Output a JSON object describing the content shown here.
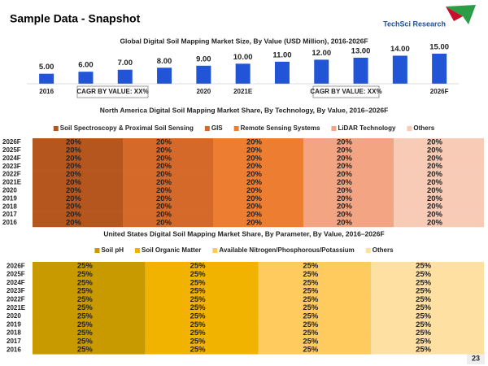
{
  "header": {
    "title": "Sample Data - Snapshot",
    "logo": "TechSci Research"
  },
  "page_number": "23",
  "chart_data": [
    {
      "type": "column",
      "title": "Global Digital Soil Mapping Market Size, By Value (USD Million), 2016-2026F",
      "categories": [
        "2016",
        null,
        null,
        null,
        "2020",
        "2021E",
        null,
        null,
        null,
        null,
        "2026F"
      ],
      "values": [
        5,
        6,
        7,
        8,
        9,
        10,
        11,
        12,
        13,
        14,
        15
      ],
      "value_labels": [
        "5.00",
        "6.00",
        "7.00",
        "8.00",
        "9.00",
        "10.00",
        "11.00",
        "12.00",
        "13.00",
        "14.00",
        "15.00"
      ],
      "color": "#2155d6",
      "annotations": [
        "CAGR BY VALUE: XX%",
        "CAGR BY VALUE: XX%"
      ]
    },
    {
      "type": "stacked-barh",
      "title": "North America Digital Soil Mapping Market Share, By Technology, By Value, 2016–2026F",
      "categories": [
        "2026F",
        "2025F",
        "2024F",
        "2023F",
        "2022F",
        "2021E",
        "2020",
        "2019",
        "2018",
        "2017",
        "2016"
      ],
      "series": [
        {
          "name": "Soil Spectroscopy & Proximal Soil Sensing",
          "color": "#b5561f",
          "values": [
            20,
            20,
            20,
            20,
            20,
            20,
            20,
            20,
            20,
            20,
            20
          ],
          "value_labels": [
            "20%",
            "20%",
            "20%",
            "20%",
            "20%",
            "20%",
            "20%",
            "20%",
            "20%",
            "20%",
            "20%"
          ]
        },
        {
          "name": "GIS",
          "color": "#d4692a",
          "values": [
            20,
            20,
            20,
            20,
            20,
            20,
            20,
            20,
            20,
            20,
            20
          ],
          "value_labels": [
            "20%",
            "20%",
            "20%",
            "20%",
            "20%",
            "20%",
            "20%",
            "20%",
            "20%",
            "20%",
            "20%"
          ]
        },
        {
          "name": "Remote Sensing Systems",
          "color": "#ed7d31",
          "values": [
            20,
            20,
            20,
            20,
            20,
            20,
            20,
            20,
            20,
            20,
            20
          ],
          "value_labels": [
            "20%",
            "20%",
            "20%",
            "20%",
            "20%",
            "20%",
            "20%",
            "20%",
            "20%",
            "20%",
            "20%"
          ]
        },
        {
          "name": "LiDAR Technology",
          "color": "#f3a583",
          "values": [
            20,
            20,
            20,
            20,
            20,
            20,
            20,
            20,
            20,
            20,
            20
          ],
          "value_labels": [
            "20%",
            "20%",
            "20%",
            "20%",
            "20%",
            "20%",
            "20%",
            "20%",
            "20%",
            "20%",
            "20%"
          ]
        },
        {
          "name": "Others",
          "color": "#f8cbb6",
          "values": [
            20,
            20,
            20,
            20,
            20,
            20,
            20,
            20,
            20,
            20,
            20
          ],
          "value_labels": [
            "20%",
            "20%",
            "20%",
            "20%",
            "20%",
            "20%",
            "20%",
            "20%",
            "20%",
            "20%",
            "20%"
          ]
        }
      ]
    },
    {
      "type": "stacked-barh",
      "title": "United States Digital Soil Mapping Market Share, By Parameter, By Value, 2016–2026F",
      "categories": [
        "2026F",
        "2025F",
        "2024F",
        "2023F",
        "2022F",
        "2021E",
        "2020",
        "2019",
        "2018",
        "2017",
        "2016"
      ],
      "series": [
        {
          "name": "Soil pH",
          "color": "#c99a00",
          "values": [
            25,
            25,
            25,
            25,
            25,
            25,
            25,
            25,
            25,
            25,
            25
          ],
          "value_labels": [
            "25%",
            "25%",
            "25%",
            "25%",
            "25%",
            "25%",
            "25%",
            "25%",
            "25%",
            "25%",
            "25%"
          ]
        },
        {
          "name": "Soil Organic Matter",
          "color": "#f2b300",
          "values": [
            25,
            25,
            25,
            25,
            25,
            25,
            25,
            25,
            25,
            25,
            25
          ],
          "value_labels": [
            "25%",
            "25%",
            "25%",
            "25%",
            "25%",
            "25%",
            "25%",
            "25%",
            "25%",
            "25%",
            "25%"
          ]
        },
        {
          "name": "Available Nitrogen/Phosphorous/Potassium",
          "color": "#ffca5e",
          "values": [
            25,
            25,
            25,
            25,
            25,
            25,
            25,
            25,
            25,
            25,
            25
          ],
          "value_labels": [
            "25%",
            "25%",
            "25%",
            "25%",
            "25%",
            "25%",
            "25%",
            "25%",
            "25%",
            "25%",
            "25%"
          ]
        },
        {
          "name": "Others",
          "color": "#ffe0a3",
          "values": [
            25,
            25,
            25,
            25,
            25,
            25,
            25,
            25,
            25,
            25,
            25
          ],
          "value_labels": [
            "25%",
            "25%",
            "25%",
            "25%",
            "25%",
            "25%",
            "25%",
            "25%",
            "25%",
            "25%",
            "25%"
          ]
        }
      ]
    }
  ]
}
